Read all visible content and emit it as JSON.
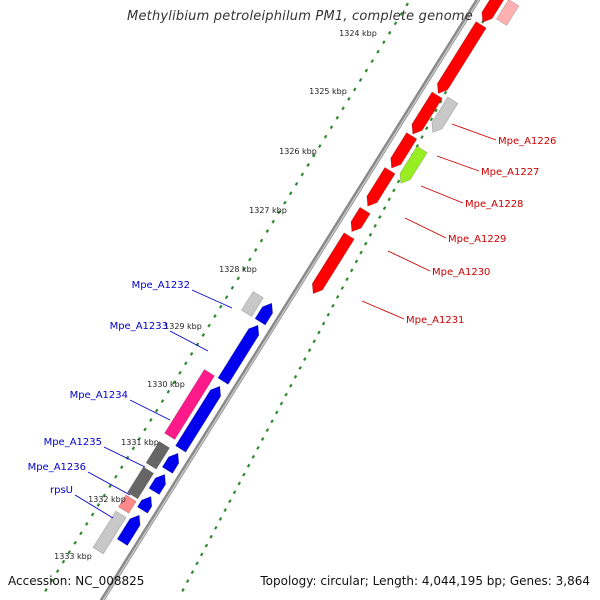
{
  "title": "Methylibium petroleiphilum PM1, complete genome",
  "footer": {
    "accession": "Accession: NC_008825",
    "topology": "Topology: circular; Length: 4,044,195 bp; Genes: 3,864"
  },
  "colors": {
    "backbone": "#8a8a8a",
    "tick_dots": "#2e8b2e",
    "forward_label": "#cc0000",
    "reverse_label": "#0000cc",
    "red": "#ff0000",
    "blue": "#0000ee",
    "gray": "#c8c8c8",
    "darkgray": "#666666",
    "magenta": "#ff1a8c",
    "lime": "#99ee22",
    "pink": "#ff8888"
  },
  "ruler": [
    {
      "label": "1324 kbp"
    },
    {
      "label": "1325 kbp"
    },
    {
      "label": "1326 kbp"
    },
    {
      "label": "1327 kbp"
    },
    {
      "label": "1328 kbp"
    },
    {
      "label": "1329 kbp"
    },
    {
      "label": "1330 kbp"
    },
    {
      "label": "1331 kbp"
    },
    {
      "label": "1332 kbp"
    },
    {
      "label": "1333 kbp"
    }
  ],
  "forward_labels": [
    {
      "text": "Mpe_A1226"
    },
    {
      "text": "Mpe_A1227"
    },
    {
      "text": "Mpe_A1228"
    },
    {
      "text": "Mpe_A1229"
    },
    {
      "text": "Mpe_A1230"
    },
    {
      "text": "Mpe_A1231"
    }
  ],
  "reverse_labels": [
    {
      "text": "Mpe_A1232"
    },
    {
      "text": "Mpe_A1233"
    },
    {
      "text": "Mpe_A1234"
    },
    {
      "text": "Mpe_A1235"
    },
    {
      "text": "Mpe_A1236"
    },
    {
      "text": "rpsU"
    }
  ]
}
